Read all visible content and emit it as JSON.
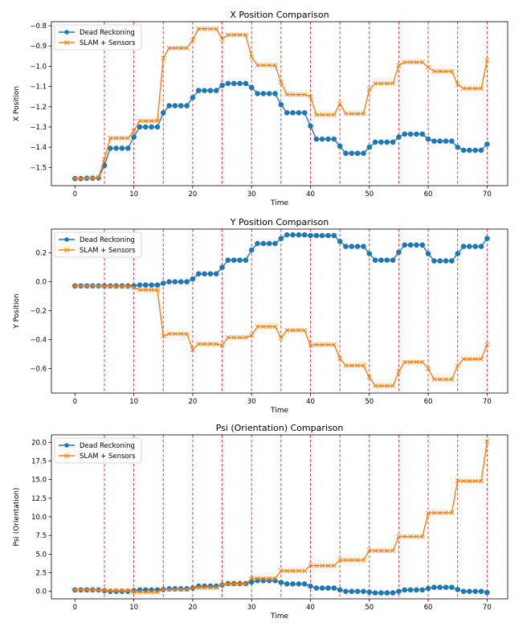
{
  "figure_data": {
    "colors": {
      "dead_reckoning": "#1f77b4",
      "slam": "#ff7f0e",
      "vline": "#d62728"
    }
  },
  "chart_data": [
    {
      "type": "line",
      "title": "X Position Comparison",
      "xlabel": "Time",
      "ylabel": "X Position",
      "xlim": [
        -4,
        73.5
      ],
      "ylim": [
        -1.59,
        -0.78
      ],
      "xticks": [
        0,
        10,
        20,
        30,
        40,
        50,
        60,
        70
      ],
      "xtick_labels": [
        "0",
        "10",
        "20",
        "30",
        "40",
        "50",
        "60",
        "70"
      ],
      "yticks": [
        -1.5,
        -1.4,
        -1.3,
        -1.2,
        -1.1,
        -1.0,
        -0.9,
        -0.8
      ],
      "ytick_labels": [
        "−1.5",
        "−1.4",
        "−1.3",
        "−1.2",
        "−1.1",
        "−1.0",
        "−0.9",
        "−0.8"
      ],
      "vlines": [
        5,
        10,
        15,
        20,
        25,
        30,
        35,
        40,
        45,
        50,
        55,
        60,
        65,
        70
      ],
      "legend": "top-left",
      "grid": false,
      "series": [
        {
          "name": "Dead Reckoning",
          "marker": "circle",
          "y": [
            -1.555,
            -1.555,
            -1.553,
            -1.553,
            -1.552,
            -1.49,
            -1.405,
            -1.405,
            -1.405,
            -1.405,
            -1.35,
            -1.3,
            -1.3,
            -1.3,
            -1.3,
            -1.23,
            -1.195,
            -1.195,
            -1.195,
            -1.195,
            -1.155,
            -1.12,
            -1.12,
            -1.12,
            -1.12,
            -1.095,
            -1.085,
            -1.085,
            -1.085,
            -1.085,
            -1.105,
            -1.135,
            -1.135,
            -1.135,
            -1.135,
            -1.19,
            -1.23,
            -1.23,
            -1.23,
            -1.23,
            -1.295,
            -1.36,
            -1.36,
            -1.36,
            -1.36,
            -1.395,
            -1.43,
            -1.43,
            -1.43,
            -1.43,
            -1.4,
            -1.375,
            -1.375,
            -1.375,
            -1.375,
            -1.35,
            -1.335,
            -1.335,
            -1.335,
            -1.335,
            -1.36,
            -1.37,
            -1.37,
            -1.37,
            -1.37,
            -1.4,
            -1.415,
            -1.415,
            -1.415,
            -1.415,
            -1.385
          ]
        },
        {
          "name": "SLAM + Sensors",
          "marker": "x",
          "y": [
            -1.555,
            -1.555,
            -1.553,
            -1.553,
            -1.55,
            -1.46,
            -1.355,
            -1.355,
            -1.355,
            -1.355,
            -1.32,
            -1.27,
            -1.27,
            -1.27,
            -1.27,
            -0.96,
            -0.91,
            -0.91,
            -0.91,
            -0.91,
            -0.87,
            -0.815,
            -0.815,
            -0.815,
            -0.815,
            -0.865,
            -0.845,
            -0.845,
            -0.845,
            -0.845,
            -0.955,
            -0.995,
            -0.995,
            -0.995,
            -0.995,
            -1.08,
            -1.14,
            -1.14,
            -1.14,
            -1.14,
            -1.15,
            -1.24,
            -1.24,
            -1.24,
            -1.24,
            -1.185,
            -1.235,
            -1.235,
            -1.235,
            -1.235,
            -1.115,
            -1.085,
            -1.085,
            -1.085,
            -1.085,
            -0.995,
            -0.98,
            -0.98,
            -0.98,
            -0.98,
            -1.005,
            -1.025,
            -1.025,
            -1.025,
            -1.025,
            -1.09,
            -1.11,
            -1.11,
            -1.11,
            -1.11,
            -0.97
          ]
        }
      ]
    },
    {
      "type": "line",
      "title": "Y Position Comparison",
      "xlabel": "Time",
      "ylabel": "Y Position",
      "xlim": [
        -4,
        73.5
      ],
      "ylim": [
        -0.77,
        0.365
      ],
      "xticks": [
        0,
        10,
        20,
        30,
        40,
        50,
        60,
        70
      ],
      "xtick_labels": [
        "0",
        "10",
        "20",
        "30",
        "40",
        "50",
        "60",
        "70"
      ],
      "yticks": [
        -0.6,
        -0.4,
        -0.2,
        0.0,
        0.2
      ],
      "ytick_labels": [
        "−0.6",
        "−0.4",
        "−0.2",
        "0.0",
        "0.2"
      ],
      "vlines": [
        5,
        10,
        15,
        20,
        25,
        30,
        35,
        40,
        45,
        50,
        55,
        60,
        65,
        70
      ],
      "legend": "top-left",
      "grid": false,
      "series": [
        {
          "name": "Dead Reckoning",
          "marker": "circle",
          "y": [
            -0.028,
            -0.028,
            -0.028,
            -0.028,
            -0.028,
            -0.028,
            -0.028,
            -0.028,
            -0.028,
            -0.028,
            -0.028,
            -0.022,
            -0.022,
            -0.022,
            -0.022,
            -0.01,
            0.0,
            0.0,
            0.0,
            0.0,
            0.02,
            0.055,
            0.055,
            0.055,
            0.055,
            0.1,
            0.15,
            0.15,
            0.15,
            0.15,
            0.22,
            0.265,
            0.265,
            0.265,
            0.265,
            0.3,
            0.325,
            0.325,
            0.325,
            0.325,
            0.32,
            0.32,
            0.32,
            0.32,
            0.32,
            0.28,
            0.245,
            0.245,
            0.245,
            0.245,
            0.195,
            0.15,
            0.15,
            0.15,
            0.15,
            0.205,
            0.255,
            0.255,
            0.255,
            0.255,
            0.195,
            0.145,
            0.145,
            0.145,
            0.145,
            0.195,
            0.245,
            0.245,
            0.245,
            0.245,
            0.3
          ]
        },
        {
          "name": "SLAM + Sensors",
          "marker": "x",
          "y": [
            -0.028,
            -0.028,
            -0.028,
            -0.028,
            -0.028,
            -0.03,
            -0.03,
            -0.03,
            -0.03,
            -0.03,
            -0.04,
            -0.055,
            -0.055,
            -0.055,
            -0.055,
            -0.375,
            -0.36,
            -0.36,
            -0.36,
            -0.36,
            -0.47,
            -0.43,
            -0.43,
            -0.43,
            -0.43,
            -0.44,
            -0.385,
            -0.385,
            -0.385,
            -0.385,
            -0.37,
            -0.31,
            -0.31,
            -0.31,
            -0.31,
            -0.39,
            -0.335,
            -0.335,
            -0.335,
            -0.335,
            -0.44,
            -0.435,
            -0.435,
            -0.435,
            -0.435,
            -0.53,
            -0.58,
            -0.58,
            -0.58,
            -0.58,
            -0.66,
            -0.72,
            -0.72,
            -0.72,
            -0.72,
            -0.62,
            -0.555,
            -0.555,
            -0.555,
            -0.555,
            -0.6,
            -0.675,
            -0.675,
            -0.675,
            -0.675,
            -0.58,
            -0.535,
            -0.535,
            -0.535,
            -0.535,
            -0.435
          ]
        }
      ]
    },
    {
      "type": "line",
      "title": "Psi (Orientation) Comparison",
      "xlabel": "Time",
      "ylabel": "Psi (Orientation)",
      "xlim": [
        -4,
        73.5
      ],
      "ylim": [
        -1.0,
        21.0
      ],
      "xticks": [
        0,
        10,
        20,
        30,
        40,
        50,
        60,
        70
      ],
      "xtick_labels": [
        "0",
        "10",
        "20",
        "30",
        "40",
        "50",
        "60",
        "70"
      ],
      "yticks": [
        0.0,
        2.5,
        5.0,
        7.5,
        10.0,
        12.5,
        15.0,
        17.5,
        20.0
      ],
      "ytick_labels": [
        "0.0",
        "2.5",
        "5.0",
        "7.5",
        "10.0",
        "12.5",
        "15.0",
        "17.5",
        "20.0"
      ],
      "vlines": [
        5,
        10,
        15,
        20,
        25,
        30,
        35,
        40,
        45,
        50,
        55,
        60,
        65,
        70
      ],
      "legend": "top-left",
      "grid": false,
      "series": [
        {
          "name": "Dead Reckoning",
          "marker": "circle",
          "y": [
            0.2,
            0.2,
            0.2,
            0.2,
            0.2,
            0.1,
            0.0,
            0.0,
            0.0,
            0.0,
            0.1,
            0.2,
            0.2,
            0.2,
            0.2,
            0.25,
            0.35,
            0.35,
            0.35,
            0.35,
            0.45,
            0.7,
            0.7,
            0.7,
            0.7,
            0.85,
            1.05,
            1.05,
            1.05,
            1.05,
            1.25,
            1.45,
            1.45,
            1.45,
            1.45,
            1.2,
            1.0,
            1.0,
            1.0,
            1.0,
            0.7,
            0.45,
            0.45,
            0.45,
            0.45,
            0.2,
            0.0,
            0.0,
            0.0,
            0.0,
            -0.1,
            -0.2,
            -0.2,
            -0.2,
            -0.2,
            0.0,
            0.2,
            0.2,
            0.2,
            0.2,
            0.4,
            0.55,
            0.55,
            0.55,
            0.55,
            0.25,
            0.0,
            0.0,
            0.0,
            0.0,
            -0.15
          ]
        },
        {
          "name": "SLAM + Sensors",
          "marker": "x",
          "y": [
            0.2,
            0.2,
            0.2,
            0.2,
            0.2,
            0.15,
            0.1,
            0.1,
            0.1,
            0.1,
            -0.05,
            -0.1,
            -0.1,
            -0.1,
            -0.1,
            0.25,
            0.25,
            0.25,
            0.25,
            0.25,
            0.45,
            0.5,
            0.5,
            0.5,
            0.5,
            0.9,
            1.0,
            1.0,
            1.0,
            1.0,
            1.75,
            1.75,
            1.75,
            1.75,
            1.75,
            2.8,
            2.75,
            2.75,
            2.75,
            2.75,
            3.5,
            3.45,
            3.45,
            3.45,
            3.45,
            4.2,
            4.2,
            4.2,
            4.2,
            4.2,
            5.5,
            5.45,
            5.45,
            5.45,
            5.45,
            7.35,
            7.35,
            7.35,
            7.35,
            7.35,
            10.5,
            10.55,
            10.55,
            10.55,
            10.55,
            14.85,
            14.8,
            14.8,
            14.8,
            14.8,
            20.1
          ]
        }
      ]
    }
  ]
}
